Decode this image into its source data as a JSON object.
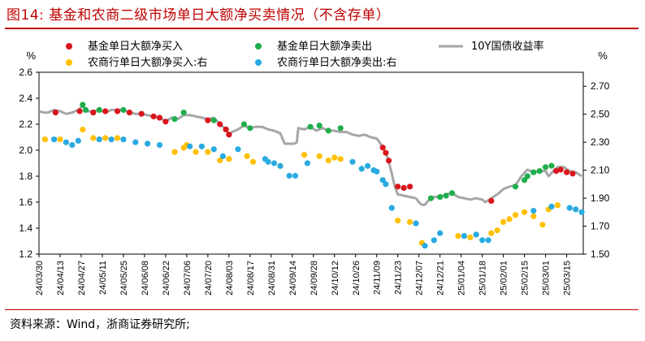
{
  "figure": {
    "title": "图14:   基金和农商二级市场单日大额净买卖情况（不含存单）",
    "source": "资料来源：Wind，浙商证券研究所;"
  },
  "colors": {
    "fund_buy": "#d9141b",
    "fund_sell": "#1fae4b",
    "rural_buy": "#ffc000",
    "rural_sell": "#29aae1",
    "yield_line": "#a6a6a6"
  },
  "chart_data": {
    "type": "line",
    "left_axis": {
      "label": "%",
      "ylim": [
        1.2,
        2.6
      ],
      "ticks": [
        "1.2",
        "1.4",
        "1.6",
        "1.8",
        "2.0",
        "2.2",
        "2.4",
        "2.6"
      ]
    },
    "right_axis": {
      "label": "%",
      "ylim": [
        1.5,
        2.8
      ],
      "ticks": [
        "1.50",
        "1.70",
        "1.90",
        "2.10",
        "2.30",
        "2.50",
        "2.70"
      ]
    },
    "x_tick_labels": [
      "24/03/30",
      "24/04/13",
      "24/04/27",
      "24/05/11",
      "24/05/25",
      "24/06/08",
      "24/06/22",
      "24/07/06",
      "24/07/20",
      "24/08/03",
      "24/08/17",
      "24/08/31",
      "24/09/14",
      "24/09/28",
      "24/10/12",
      "24/10/26",
      "24/11/09",
      "24/11/23",
      "24/12/07",
      "24/12/21",
      "25/01/04",
      "25/01/18",
      "25/02/01",
      "25/02/15",
      "25/03/01",
      "25/03/15"
    ],
    "x_range": [
      0,
      361
    ],
    "legend": [
      {
        "label": "基金单日大额净买入",
        "key": "fund_buy",
        "kind": "dot"
      },
      {
        "label": "基金单日大额净卖出",
        "key": "fund_sell",
        "kind": "dot"
      },
      {
        "label": "10Y国债收益率",
        "key": "yield_line",
        "kind": "line"
      },
      {
        "label": "农商行单日大额净买入:右",
        "key": "rural_buy",
        "kind": "dot"
      },
      {
        "label": "农商行单日大额净卖出:右",
        "key": "rural_sell",
        "kind": "dot"
      }
    ],
    "series": [
      {
        "name": "10Y国债收益率",
        "axis": "left",
        "points": [
          [
            0,
            2.3
          ],
          [
            3,
            2.29
          ],
          [
            6,
            2.29
          ],
          [
            10,
            2.31
          ],
          [
            14,
            2.3
          ],
          [
            18,
            2.28
          ],
          [
            22,
            2.29
          ],
          [
            26,
            2.31
          ],
          [
            29,
            2.34
          ],
          [
            32,
            2.3
          ],
          [
            36,
            2.3
          ],
          [
            40,
            2.31
          ],
          [
            44,
            2.29
          ],
          [
            48,
            2.31
          ],
          [
            52,
            2.31
          ],
          [
            56,
            2.31
          ],
          [
            60,
            2.29
          ],
          [
            64,
            2.28
          ],
          [
            68,
            2.28
          ],
          [
            72,
            2.27
          ],
          [
            76,
            2.26
          ],
          [
            80,
            2.25
          ],
          [
            84,
            2.22
          ],
          [
            88,
            2.25
          ],
          [
            92,
            2.24
          ],
          [
            96,
            2.27
          ],
          [
            100,
            2.27
          ],
          [
            104,
            2.26
          ],
          [
            108,
            2.25
          ],
          [
            112,
            2.24
          ],
          [
            116,
            2.25
          ],
          [
            120,
            2.2
          ],
          [
            124,
            2.16
          ],
          [
            126,
            2.12
          ],
          [
            128,
            2.14
          ],
          [
            132,
            2.16
          ],
          [
            136,
            2.19
          ],
          [
            140,
            2.17
          ],
          [
            144,
            2.18
          ],
          [
            148,
            2.18
          ],
          [
            152,
            2.16
          ],
          [
            156,
            2.15
          ],
          [
            160,
            2.13
          ],
          [
            163,
            2.05
          ],
          [
            166,
            2.05
          ],
          [
            169,
            2.05
          ],
          [
            171,
            2.06
          ],
          [
            172,
            2.17
          ],
          [
            176,
            2.16
          ],
          [
            180,
            2.18
          ],
          [
            184,
            2.15
          ],
          [
            188,
            2.17
          ],
          [
            192,
            2.15
          ],
          [
            196,
            2.15
          ],
          [
            200,
            2.14
          ],
          [
            204,
            2.14
          ],
          [
            208,
            2.12
          ],
          [
            212,
            2.11
          ],
          [
            216,
            2.12
          ],
          [
            220,
            2.1
          ],
          [
            224,
            2.09
          ],
          [
            226,
            2.06
          ],
          [
            228,
            2.02
          ],
          [
            230,
            1.98
          ],
          [
            232,
            1.91
          ],
          [
            234,
            1.82
          ],
          [
            236,
            1.72
          ],
          [
            238,
            1.66
          ],
          [
            242,
            1.65
          ],
          [
            246,
            1.64
          ],
          [
            250,
            1.63
          ],
          [
            252,
            1.6
          ],
          [
            254,
            1.58
          ],
          [
            256,
            1.58
          ],
          [
            258,
            1.61
          ],
          [
            262,
            1.64
          ],
          [
            266,
            1.64
          ],
          [
            270,
            1.66
          ],
          [
            274,
            1.67
          ],
          [
            278,
            1.64
          ],
          [
            282,
            1.63
          ],
          [
            286,
            1.62
          ],
          [
            290,
            1.63
          ],
          [
            294,
            1.62
          ],
          [
            296,
            1.6
          ],
          [
            300,
            1.63
          ],
          [
            304,
            1.66
          ],
          [
            308,
            1.7
          ],
          [
            312,
            1.72
          ],
          [
            316,
            1.73
          ],
          [
            320,
            1.8
          ],
          [
            324,
            1.85
          ],
          [
            328,
            1.83
          ],
          [
            332,
            1.84
          ],
          [
            336,
            1.84
          ],
          [
            338,
            1.8
          ],
          [
            342,
            1.85
          ],
          [
            344,
            1.87
          ],
          [
            348,
            1.87
          ],
          [
            352,
            1.84
          ],
          [
            356,
            1.83
          ],
          [
            360,
            1.8
          ]
        ]
      },
      {
        "name": "基金单日大额净买入",
        "axis": "left",
        "points": [
          [
            11,
            2.29
          ],
          [
            27,
            2.3
          ],
          [
            36,
            2.29
          ],
          [
            44,
            2.3
          ],
          [
            52,
            2.3
          ],
          [
            60,
            2.29
          ],
          [
            68,
            2.28
          ],
          [
            76,
            2.26
          ],
          [
            80,
            2.25
          ],
          [
            84,
            2.22
          ],
          [
            112,
            2.23
          ],
          [
            120,
            2.2
          ],
          [
            124,
            2.16
          ],
          [
            126,
            2.12
          ],
          [
            228,
            2.02
          ],
          [
            230,
            1.98
          ],
          [
            232,
            1.92
          ],
          [
            238,
            1.72
          ],
          [
            242,
            1.71
          ],
          [
            246,
            1.72
          ],
          [
            300,
            1.61
          ],
          [
            343,
            1.84
          ],
          [
            346,
            1.85
          ],
          [
            350,
            1.83
          ],
          [
            354,
            1.82
          ]
        ]
      },
      {
        "name": "基金单日大额净卖出",
        "axis": "left",
        "points": [
          [
            29,
            2.35
          ],
          [
            31,
            2.31
          ],
          [
            40,
            2.31
          ],
          [
            56,
            2.31
          ],
          [
            90,
            2.24
          ],
          [
            96,
            2.29
          ],
          [
            116,
            2.23
          ],
          [
            136,
            2.2
          ],
          [
            140,
            2.17
          ],
          [
            180,
            2.18
          ],
          [
            186,
            2.19
          ],
          [
            192,
            2.15
          ],
          [
            200,
            2.17
          ],
          [
            260,
            1.63
          ],
          [
            266,
            1.64
          ],
          [
            270,
            1.65
          ],
          [
            274,
            1.67
          ],
          [
            316,
            1.72
          ],
          [
            322,
            1.77
          ],
          [
            324,
            1.8
          ],
          [
            328,
            1.83
          ],
          [
            332,
            1.84
          ],
          [
            336,
            1.87
          ],
          [
            340,
            1.88
          ]
        ]
      },
      {
        "name": "农商行单日大额净买入:右",
        "axis": "right",
        "points": [
          [
            4,
            2.32
          ],
          [
            14,
            2.32
          ],
          [
            29,
            2.39
          ],
          [
            36,
            2.33
          ],
          [
            44,
            2.33
          ],
          [
            52,
            2.33
          ],
          [
            90,
            2.23
          ],
          [
            96,
            2.26
          ],
          [
            98,
            2.28
          ],
          [
            104,
            2.23
          ],
          [
            112,
            2.23
          ],
          [
            120,
            2.17
          ],
          [
            126,
            2.18
          ],
          [
            138,
            2.2
          ],
          [
            142,
            2.16
          ],
          [
            160,
            2.13
          ],
          [
            176,
            2.21
          ],
          [
            186,
            2.2
          ],
          [
            192,
            2.17
          ],
          [
            196,
            2.19
          ],
          [
            200,
            2.18
          ],
          [
            238,
            1.74
          ],
          [
            246,
            1.73
          ],
          [
            254,
            1.58
          ],
          [
            278,
            1.63
          ],
          [
            286,
            1.62
          ],
          [
            300,
            1.65
          ],
          [
            304,
            1.67
          ],
          [
            308,
            1.73
          ],
          [
            312,
            1.75
          ],
          [
            316,
            1.78
          ],
          [
            322,
            1.8
          ],
          [
            328,
            1.77
          ],
          [
            334,
            1.71
          ],
          [
            338,
            1.82
          ],
          [
            344,
            1.85
          ]
        ]
      },
      {
        "name": "农商行单日大额净卖出:右",
        "axis": "right",
        "points": [
          [
            10,
            2.32
          ],
          [
            18,
            2.3
          ],
          [
            22,
            2.28
          ],
          [
            26,
            2.31
          ],
          [
            40,
            2.32
          ],
          [
            48,
            2.32
          ],
          [
            56,
            2.32
          ],
          [
            64,
            2.3
          ],
          [
            72,
            2.29
          ],
          [
            80,
            2.28
          ],
          [
            100,
            2.27
          ],
          [
            108,
            2.27
          ],
          [
            116,
            2.25
          ],
          [
            122,
            2.2
          ],
          [
            132,
            2.25
          ],
          [
            150,
            2.18
          ],
          [
            152,
            2.16
          ],
          [
            156,
            2.15
          ],
          [
            160,
            2.13
          ],
          [
            166,
            2.06
          ],
          [
            170,
            2.06
          ],
          [
            178,
            2.15
          ],
          [
            208,
            2.16
          ],
          [
            214,
            2.11
          ],
          [
            218,
            2.13
          ],
          [
            222,
            2.1
          ],
          [
            224,
            2.09
          ],
          [
            228,
            2.03
          ],
          [
            230,
            2.0
          ],
          [
            234,
            1.83
          ],
          [
            250,
            1.72
          ],
          [
            256,
            1.56
          ],
          [
            262,
            1.6
          ],
          [
            266,
            1.65
          ],
          [
            282,
            1.63
          ],
          [
            290,
            1.64
          ],
          [
            294,
            1.6
          ],
          [
            298,
            1.6
          ],
          [
            328,
            1.81
          ],
          [
            340,
            1.84
          ],
          [
            352,
            1.83
          ],
          [
            356,
            1.82
          ],
          [
            360,
            1.8
          ]
        ]
      }
    ]
  }
}
